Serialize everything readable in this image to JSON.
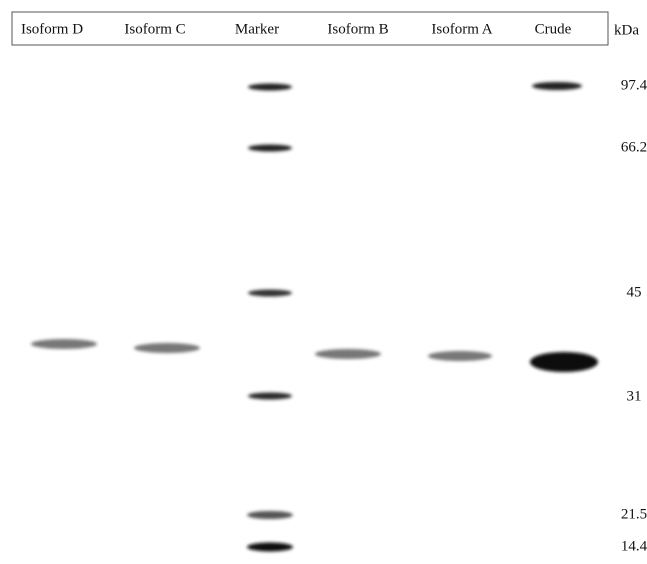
{
  "header": {
    "lanes": [
      "Isoform D",
      "Isoform C",
      "Marker",
      "Isoform B",
      "Isoform A",
      "Crude"
    ],
    "unit": "kDa"
  },
  "markers": [
    "97.4",
    "66.2",
    "45",
    "31",
    "21.5",
    "14.4"
  ]
}
